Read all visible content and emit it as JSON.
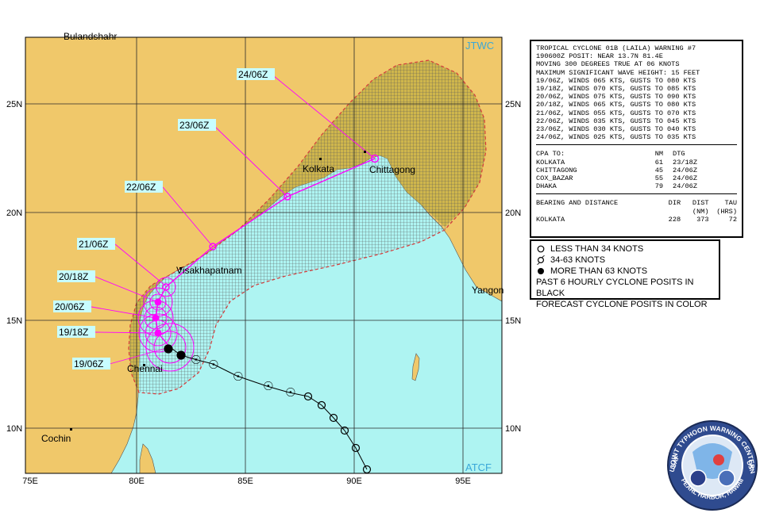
{
  "header": {
    "source_top": "JTWC",
    "source_bottom": "ATCF"
  },
  "map": {
    "lon_labels": [
      "75E",
      "80E",
      "85E",
      "90E",
      "95E"
    ],
    "lat_labels": [
      "10N",
      "15N",
      "20N",
      "25N"
    ],
    "places": {
      "bulandshahr": "Bulandshahr",
      "kolkata": "Kolkata",
      "chittagong": "Chittagong",
      "visakhapatnam": "Visakhapatnam",
      "chennai": "Chennai",
      "cochin": "Cochin",
      "yangon": "Yangon"
    },
    "forecast_labels": [
      "24/06Z",
      "23/06Z",
      "22/06Z",
      "21/06Z",
      "20/18Z",
      "20/06Z",
      "19/18Z",
      "19/06Z"
    ],
    "colors": {
      "ocean": "#aef4f2",
      "land": "#f0c86a",
      "danger_land": "#c9b347",
      "track": "#ff00ff",
      "label_bg": "#c8fdff",
      "danger_border": "#d63c3c",
      "grid": "#2a2a2a"
    }
  },
  "warning": {
    "lines": [
      "TROPICAL CYCLONE 01B (LAILA) WARNING #7",
      "190600Z POSIT: NEAR 13.7N 81.4E",
      "MOVING 300 DEGREES TRUE AT 06 KNOTS",
      "MAXIMUM SIGNIFICANT WAVE HEIGHT: 15 FEET",
      "19/06Z, WINDS 065 KTS, GUSTS TO 080 KTS",
      "19/18Z, WINDS 070 KTS, GUSTS TO 085 KTS",
      "20/06Z, WINDS 075 KTS, GUSTS TO 090 KTS",
      "20/18Z, WINDS 065 KTS, GUSTS TO 080 KTS",
      "21/06Z, WINDS 055 KTS, GUSTS TO 070 KTS",
      "22/06Z, WINDS 035 KTS, GUSTS TO 045 KTS",
      "23/06Z, WINDS 030 KTS, GUSTS TO 040 KTS",
      "24/06Z, WINDS 025 KTS, GUSTS TO 035 KTS"
    ],
    "cpa": {
      "header": {
        "label": "CPA TO:",
        "nm": "NM",
        "dtg": "DTG"
      },
      "rows": [
        {
          "place": "KOLKATA",
          "nm": "61",
          "dtg": "23/18Z"
        },
        {
          "place": "CHITTAGONG",
          "nm": "45",
          "dtg": "24/06Z"
        },
        {
          "place": "COX_BAZAR",
          "nm": "55",
          "dtg": "24/06Z"
        },
        {
          "place": "DHAKA",
          "nm": "79",
          "dtg": "24/06Z"
        }
      ]
    },
    "bearing": {
      "header": {
        "label": "BEARING AND DISTANCE",
        "dir": "DIR",
        "dist": "DIST",
        "tau": "TAU"
      },
      "units": {
        "dist": "(NM)",
        "tau": "(HRS)"
      },
      "row": {
        "place": "KOLKATA",
        "dir": "228",
        "dist": "373",
        "tau": "72"
      }
    }
  },
  "legend": {
    "items": [
      {
        "symbol": "open-circle-icon",
        "label": "LESS THAN 34 KNOTS"
      },
      {
        "symbol": "cyclone-icon",
        "label": "34-63 KNOTS"
      },
      {
        "symbol": "filled-circle-icon",
        "label": "MORE THAN 63 KNOTS"
      }
    ],
    "note1": "PAST 6 HOURLY CYCLONE POSITS IN BLACK",
    "note2": "FORECAST CYCLONE POSITS IN COLOR"
  },
  "emblem": {
    "outer_text": "JOINT TYPHOON WARNING CENTER",
    "bottom_text": "PEARL HARBOR, HAWAII",
    "left_text": "USAF",
    "right_text": "USN"
  }
}
